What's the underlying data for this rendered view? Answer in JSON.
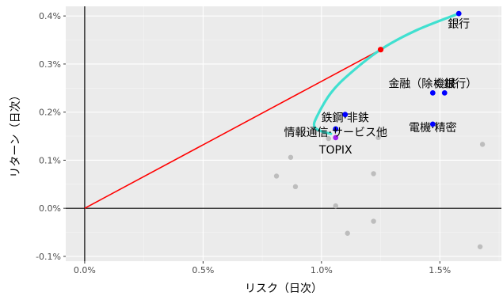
{
  "chart_data": {
    "type": "scatter",
    "title": "",
    "xlabel": "リスク（日次）",
    "ylabel": "リターン（日次）",
    "xlim": [
      -0.0008,
      0.0176
    ],
    "ylim": [
      -0.0011,
      0.0042
    ],
    "x_ticks": [
      0.0,
      0.005,
      0.01,
      0.015
    ],
    "x_tick_labels": [
      "0.0%",
      "0.5%",
      "1.0%",
      "1.5%"
    ],
    "y_ticks": [
      -0.001,
      0.0,
      0.001,
      0.002,
      0.003,
      0.004
    ],
    "y_tick_labels": [
      "-0.1%",
      "0.0%",
      "0.1%",
      "0.2%",
      "0.3%",
      "0.4%"
    ],
    "grid": true,
    "background_color": "#ebebeb",
    "colors": {
      "other_points": "#bdbdbd",
      "selected_points": "#0000ff",
      "tangency_point": "#ff0000",
      "topix_point": "#a020f0",
      "capital_market_line": "#ff0000",
      "efficient_frontier": "#40e0d0",
      "reference_axes": "#000000"
    },
    "labeled_points": [
      {
        "label": "銀行",
        "x": 0.0158,
        "y": 0.00405
      },
      {
        "label": "金融（除く銀行）",
        "x": 0.0147,
        "y": 0.0024
      },
      {
        "label": "機械",
        "x": 0.0152,
        "y": 0.0024
      },
      {
        "label": "電機·精密",
        "x": 0.0147,
        "y": 0.00175
      },
      {
        "label": "鉄鋼·非鉄",
        "x": 0.011,
        "y": 0.00195
      },
      {
        "label": "情報通信·サービス他",
        "x": 0.0106,
        "y": 0.00165
      },
      {
        "label": "TOPIX",
        "x": 0.0106,
        "y": 0.00147
      }
    ],
    "other_points": [
      {
        "x": 0.0081,
        "y": 0.00067
      },
      {
        "x": 0.0087,
        "y": 0.00106
      },
      {
        "x": 0.0089,
        "y": 0.00045
      },
      {
        "x": 0.009,
        "y": 0.00155
      },
      {
        "x": 0.0103,
        "y": 0.00145
      },
      {
        "x": 0.0106,
        "y": 5e-05
      },
      {
        "x": 0.0111,
        "y": -0.00052
      },
      {
        "x": 0.0122,
        "y": 0.00072
      },
      {
        "x": 0.0122,
        "y": -0.00027
      },
      {
        "x": 0.0124,
        "y": 0.00147
      },
      {
        "x": 0.0168,
        "y": 0.00133
      },
      {
        "x": 0.0167,
        "y": -0.0008
      }
    ],
    "tangency_point": {
      "x": 0.0125,
      "y": 0.0033
    },
    "capital_market_line": [
      {
        "x": 0.0,
        "y": 0.0
      },
      {
        "x": 0.0125,
        "y": 0.0033
      }
    ],
    "efficient_frontier": [
      {
        "x": 0.0158,
        "y": 0.00405
      },
      {
        "x": 0.014,
        "y": 0.0037
      },
      {
        "x": 0.0125,
        "y": 0.0033
      },
      {
        "x": 0.0112,
        "y": 0.0028
      },
      {
        "x": 0.0104,
        "y": 0.0024
      },
      {
        "x": 0.0098,
        "y": 0.0019
      },
      {
        "x": 0.0097,
        "y": 0.0017
      },
      {
        "x": 0.01,
        "y": 0.0016
      },
      {
        "x": 0.0104,
        "y": 0.00155
      }
    ]
  }
}
